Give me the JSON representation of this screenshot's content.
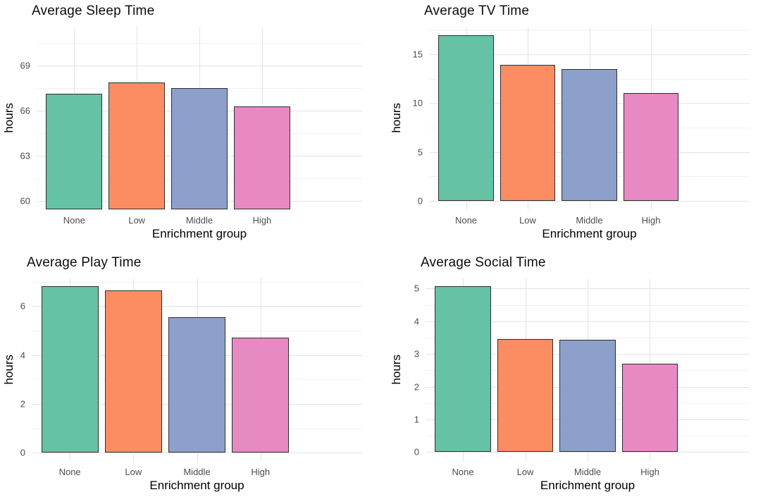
{
  "colors": {
    "bars": [
      "#66C2A5",
      "#FC8D62",
      "#8DA0CB",
      "#E78AC3"
    ],
    "bar_border": "#2e2e2e",
    "grid_major": "#e3e3e3",
    "grid_minor": "#f1f1f1",
    "tick_label": "#4d4d4d",
    "axis_title": "#000000",
    "background": "#ffffff"
  },
  "chart_data": [
    {
      "type": "bar",
      "title": "Average Sleep Time",
      "xlabel": "Enrichment group",
      "ylabel": "hours",
      "categories": [
        "None",
        "Low",
        "Middle",
        "High"
      ],
      "values": [
        67.15,
        67.9,
        67.5,
        66.3
      ],
      "yticks": [
        60,
        63,
        66,
        69
      ],
      "yticks_minor": [
        61.5,
        64.5,
        67.5,
        70.5
      ],
      "ylim": [
        59.45,
        71.6
      ],
      "grid": true,
      "legend": "none"
    },
    {
      "type": "bar",
      "title": "Average TV Time",
      "xlabel": "Enrichment group",
      "ylabel": "hours",
      "categories": [
        "None",
        "Low",
        "Middle",
        "High"
      ],
      "values": [
        16.95,
        13.9,
        13.5,
        11.0
      ],
      "yticks": [
        0,
        5,
        10,
        15
      ],
      "yticks_minor": [
        2.5,
        7.5,
        12.5,
        17.5
      ],
      "ylim": [
        -0.85,
        17.8
      ],
      "grid": true,
      "legend": "none"
    },
    {
      "type": "bar",
      "title": "Average Play Time",
      "xlabel": "Enrichment group",
      "ylabel": "hours",
      "categories": [
        "None",
        "Low",
        "Middle",
        "High"
      ],
      "values": [
        6.8,
        6.65,
        5.55,
        4.7
      ],
      "yticks": [
        0,
        2,
        4,
        6
      ],
      "yticks_minor": [
        1,
        3,
        5,
        7
      ],
      "ylim": [
        -0.34,
        7.13
      ],
      "grid": true,
      "legend": "none"
    },
    {
      "type": "bar",
      "title": "Average Social Time",
      "xlabel": "Enrichment group",
      "ylabel": "hours",
      "categories": [
        "None",
        "Low",
        "Middle",
        "High"
      ],
      "values": [
        5.07,
        3.45,
        3.43,
        2.7
      ],
      "yticks": [
        0,
        1,
        2,
        3,
        4,
        5
      ],
      "yticks_minor": [
        0.5,
        1.5,
        2.5,
        3.5,
        4.5
      ],
      "ylim": [
        -0.27,
        5.31
      ],
      "grid": true,
      "legend": "none"
    }
  ]
}
